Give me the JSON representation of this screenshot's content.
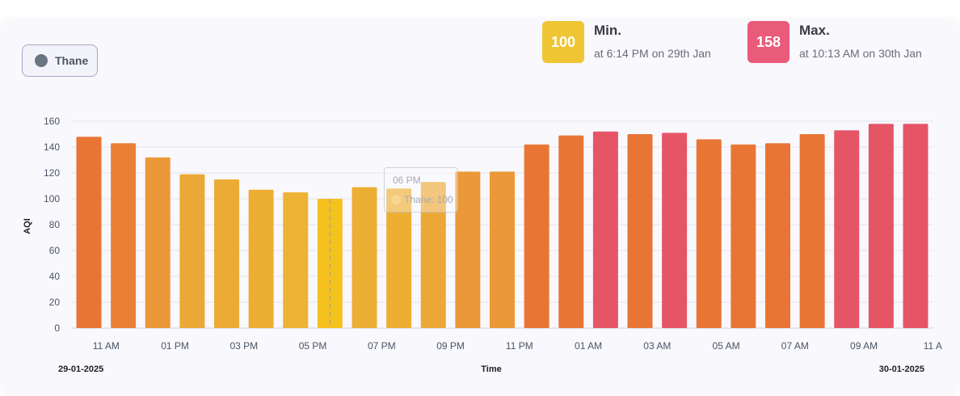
{
  "location": {
    "label": "Thane",
    "dot_color": "#6b7582"
  },
  "min_stat": {
    "value": "100",
    "title": "Min.",
    "subtitle": "at 6:14 PM on 29th Jan",
    "color": "#efc534"
  },
  "max_stat": {
    "value": "158",
    "title": "Max.",
    "subtitle": "at 10:13 AM on 30th Jan",
    "color": "#ea5a7a"
  },
  "tooltip": {
    "time": "06 PM",
    "series_text": "Thane: 100"
  },
  "chart_data": {
    "type": "bar",
    "title": "",
    "xlabel": "Time",
    "ylabel": "AQI",
    "ylim": [
      0,
      160
    ],
    "yticks": [
      0,
      20,
      40,
      60,
      80,
      100,
      120,
      140,
      160
    ],
    "grid": true,
    "x_tick_labels": [
      "11 AM",
      "01 PM",
      "03 PM",
      "05 PM",
      "07 PM",
      "09 PM",
      "11 PM",
      "01 AM",
      "03 AM",
      "05 AM",
      "07 AM",
      "09 AM",
      "11 A"
    ],
    "date_start_label": "29-01-2025",
    "date_end_label": "30-01-2025",
    "highlighted_index": 7,
    "series": [
      {
        "name": "Thane",
        "values": [
          148,
          143,
          132,
          119,
          115,
          107,
          105,
          100,
          109,
          108,
          113,
          121,
          121,
          142,
          149,
          152,
          150,
          151,
          146,
          142,
          143,
          150,
          153,
          158,
          158
        ],
        "colors": [
          "#e97535",
          "#ea8035",
          "#eb9838",
          "#eca836",
          "#ecab35",
          "#edae34",
          "#eeb234",
          "#f5c21d",
          "#edae34",
          "#edae34",
          "#eca836",
          "#eb9838",
          "#eb9838",
          "#e97535",
          "#e97535",
          "#e65566",
          "#e97535",
          "#e65566",
          "#e97535",
          "#e97535",
          "#e97535",
          "#e97535",
          "#e65566",
          "#e65566",
          "#e65566"
        ]
      }
    ]
  }
}
